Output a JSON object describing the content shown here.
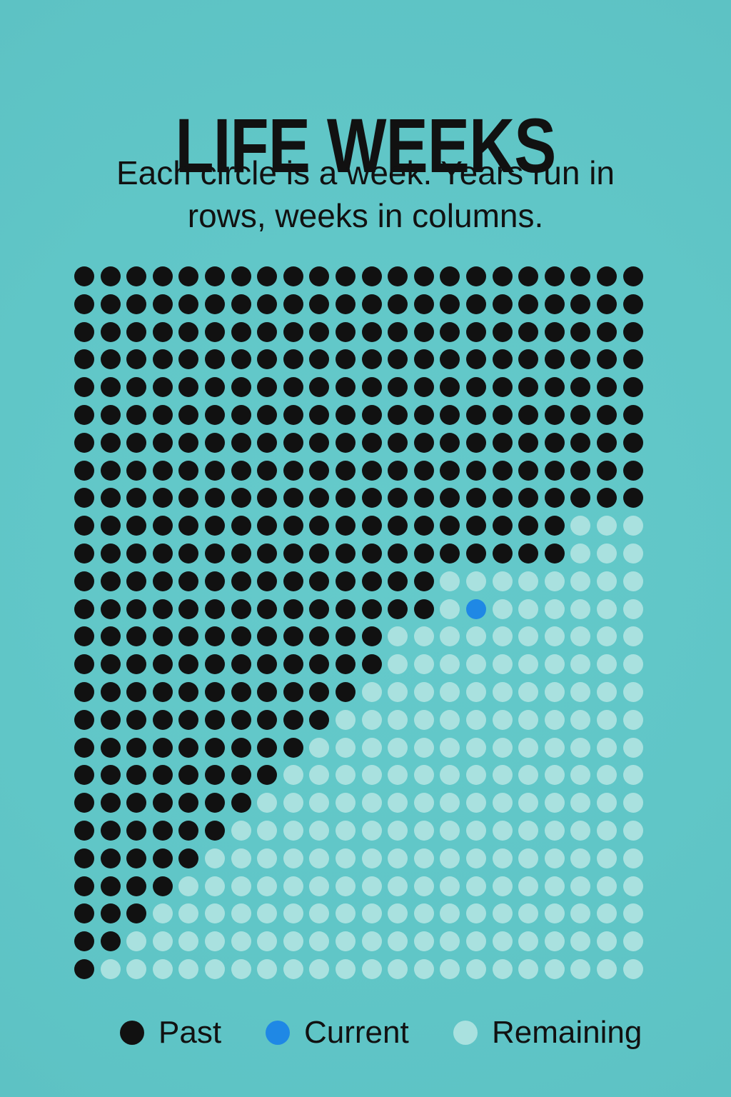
{
  "header": {
    "title": "LIFE WEEKS",
    "subtitle": "Each circle is a week. Years run in rows, weeks in columns."
  },
  "colors": {
    "background": "#62c8c9",
    "past": "#111111",
    "current": "#1f88e5",
    "remaining": "#a9e1df"
  },
  "grid": {
    "rows": 26,
    "columns": 22,
    "current_row": 12,
    "current_column": 15,
    "past_counts_by_row": [
      22,
      22,
      22,
      22,
      22,
      22,
      22,
      22,
      22,
      19,
      19,
      14,
      14,
      12,
      12,
      11,
      10,
      9,
      8,
      7,
      6,
      5,
      4,
      3,
      2,
      1
    ],
    "current_cells": [
      {
        "row": 12,
        "column": 15
      }
    ]
  },
  "legend": [
    {
      "label": "Past",
      "status": "past"
    },
    {
      "label": "Current",
      "status": "current"
    },
    {
      "label": "Remaining",
      "status": "remaining"
    }
  ]
}
